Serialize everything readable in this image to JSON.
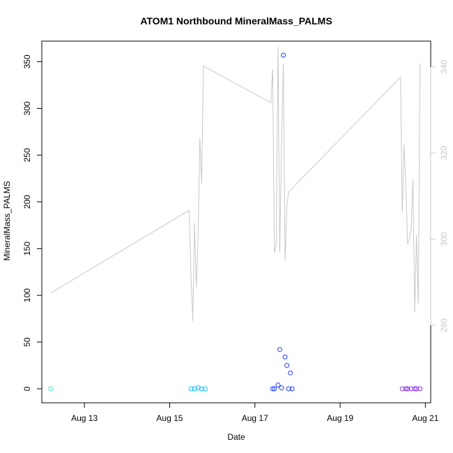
{
  "chart_data": {
    "type": "scatter",
    "title": "ATOM1 Northbound MineralMass_PALMS",
    "xlabel": "Date",
    "ylabel": "MineralMass_PALMS",
    "x_tick_labels": [
      "Aug 13",
      "Aug 15",
      "Aug 17",
      "Aug 19",
      "Aug 21"
    ],
    "x_ticks": [
      "2016-08-13",
      "2016-08-15",
      "2016-08-17",
      "2016-08-19",
      "2016-08-21"
    ],
    "xlim": [
      "2016-08-12T00:00",
      "2016-08-21T03:00"
    ],
    "y_tick_labels": [
      "0",
      "50",
      "100",
      "150",
      "200",
      "250",
      "300",
      "350"
    ],
    "ylim": [
      -15,
      372
    ],
    "y2_tick_labels": [
      "280",
      "300",
      "320",
      "340"
    ],
    "y2lim": [
      262,
      346
    ],
    "grid": false,
    "legend": "none",
    "series": [
      {
        "kind": "points",
        "axis": "left",
        "color_scale": [
          "#40e0d0",
          "#00bfff",
          "#1e3cff",
          "#8a2be2"
        ],
        "x": [
          "2016-08-12T05:00",
          "2016-08-15T12:00",
          "2016-08-15T14:00",
          "2016-08-15T16:00",
          "2016-08-15T18:00",
          "2016-08-15T20:00",
          "2016-08-17T10:00",
          "2016-08-17T11:00",
          "2016-08-17T13:00",
          "2016-08-17T14:00",
          "2016-08-17T15:00",
          "2016-08-17T16:00",
          "2016-08-17T17:00",
          "2016-08-17T18:00",
          "2016-08-17T19:00",
          "2016-08-20T11:00",
          "2016-08-20T13:00",
          "2016-08-20T14:00",
          "2016-08-20T16:00",
          "2016-08-20T18:00",
          "2016-08-20T19:00",
          "2016-08-20T21:00"
        ],
        "y": [
          0,
          0,
          0,
          1,
          0,
          0,
          0,
          0,
          4,
          42,
          1,
          357,
          34,
          25,
          0,
          0,
          0,
          0,
          0,
          0,
          0,
          0
        ],
        "extra_points": [
          {
            "x": "2016-08-17T20:00",
            "y": 17
          },
          {
            "x": "2016-08-17T21:00",
            "y": 0
          }
        ]
      },
      {
        "kind": "line",
        "axis": "right",
        "color": "#c8c8c8",
        "x": [
          "2016-08-12T05:00",
          "2016-08-15T11:00",
          "2016-08-15T12:00",
          "2016-08-15T13:00",
          "2016-08-15T14:00",
          "2016-08-15T15:00",
          "2016-08-15T16:00",
          "2016-08-15T17:00",
          "2016-08-15T18:00",
          "2016-08-15T19:00",
          "2016-08-17T09:00",
          "2016-08-17T10:00",
          "2016-08-17T11:00",
          "2016-08-17T12:00",
          "2016-08-17T13:00",
          "2016-08-17T14:00",
          "2016-08-17T15:00",
          "2016-08-17T16:00",
          "2016-08-17T17:00",
          "2016-08-17T18:00",
          "2016-08-17T19:00",
          "2016-08-20T10:00",
          "2016-08-20T11:00",
          "2016-08-20T12:00",
          "2016-08-20T13:00",
          "2016-08-20T14:00",
          "2016-08-20T15:00",
          "2016-08-20T16:00",
          "2016-08-20T17:00",
          "2016-08-20T18:00",
          "2016-08-20T19:00",
          "2016-08-20T20:00",
          "2016-08-20T21:00"
        ],
        "y": [
          287.5,
          306.7,
          292.0,
          281.0,
          303.8,
          288.8,
          300.0,
          323.5,
          313.0,
          340.2,
          331.7,
          339.5,
          296.8,
          298.8,
          344.6,
          297.0,
          322.6,
          340.8,
          295.0,
          308.0,
          311.0,
          337.6,
          306.2,
          322.0,
          312.6,
          298.8,
          300.0,
          302.6,
          313.8,
          283.0,
          301.0,
          285.0,
          340.8
        ]
      }
    ]
  }
}
